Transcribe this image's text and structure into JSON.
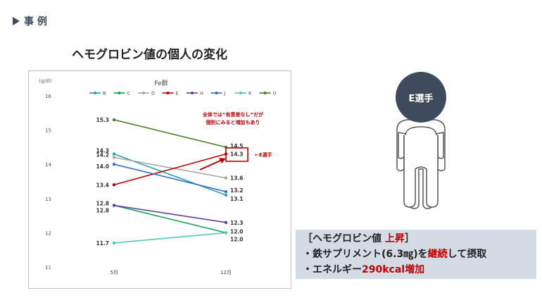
{
  "section": {
    "label": "事 例"
  },
  "title": "ヘモグロビン値の個人の変化",
  "chart_data": {
    "type": "line",
    "title": "Fe群",
    "ylabel": "(g/dl)",
    "ylim": [
      11,
      16
    ],
    "yticks": [
      "11",
      "12",
      "13",
      "14",
      "15",
      "16"
    ],
    "categories": [
      "5月",
      "12月"
    ],
    "series": [
      {
        "name": "B",
        "color": "#2e9fb5",
        "values": [
          14.3,
          13.1
        ],
        "labels": [
          "14.3",
          "13.1"
        ]
      },
      {
        "name": "C",
        "color": "#13a34a",
        "values": [
          12.8,
          12.0
        ],
        "labels": [
          "12.8",
          "12.0"
        ]
      },
      {
        "name": "D",
        "color": "#a6a6a6",
        "values": [
          14.2,
          13.6
        ],
        "labels": [
          "14.2",
          "13.6"
        ]
      },
      {
        "name": "E",
        "color": "#c00000",
        "values": [
          13.4,
          14.3
        ],
        "labels": [
          "13.4",
          "14.3"
        ]
      },
      {
        "name": "H",
        "color": "#6a3aa0",
        "values": [
          12.8,
          12.3
        ],
        "labels": [
          "12.8",
          "12.3"
        ]
      },
      {
        "name": "J",
        "color": "#3a6fc4",
        "values": [
          14.0,
          13.2
        ],
        "labels": [
          "14.0",
          "13.2"
        ]
      },
      {
        "name": "K",
        "color": "#4fc9c0",
        "values": [
          11.7,
          12.0
        ],
        "labels": [
          "11.7",
          "12.0"
        ]
      },
      {
        "name": "O",
        "color": "#4a7c2a",
        "values": [
          15.3,
          14.5
        ],
        "labels": [
          "15.3",
          "14.5"
        ]
      }
    ],
    "annotation": {
      "line1": "全体では“有意差なし”だが",
      "line2": "個別にみると増加もあり",
      "color": "#c00000"
    },
    "callout": {
      "label": "←E選手",
      "value": "14.3"
    }
  },
  "person": {
    "label": "E選手",
    "head_color": "#3d4b5c"
  },
  "info": {
    "line1_a": "［ヘモグロビン値 ",
    "line1_b": "上昇",
    "line1_c": "］",
    "line2_a": "・鉄サプリメント(6.3㎎)を",
    "line2_b": "継続",
    "line2_c": "して摂取",
    "line3_a": "・エネルギー",
    "line3_b": "290kcal増加",
    "line3_c": ""
  }
}
